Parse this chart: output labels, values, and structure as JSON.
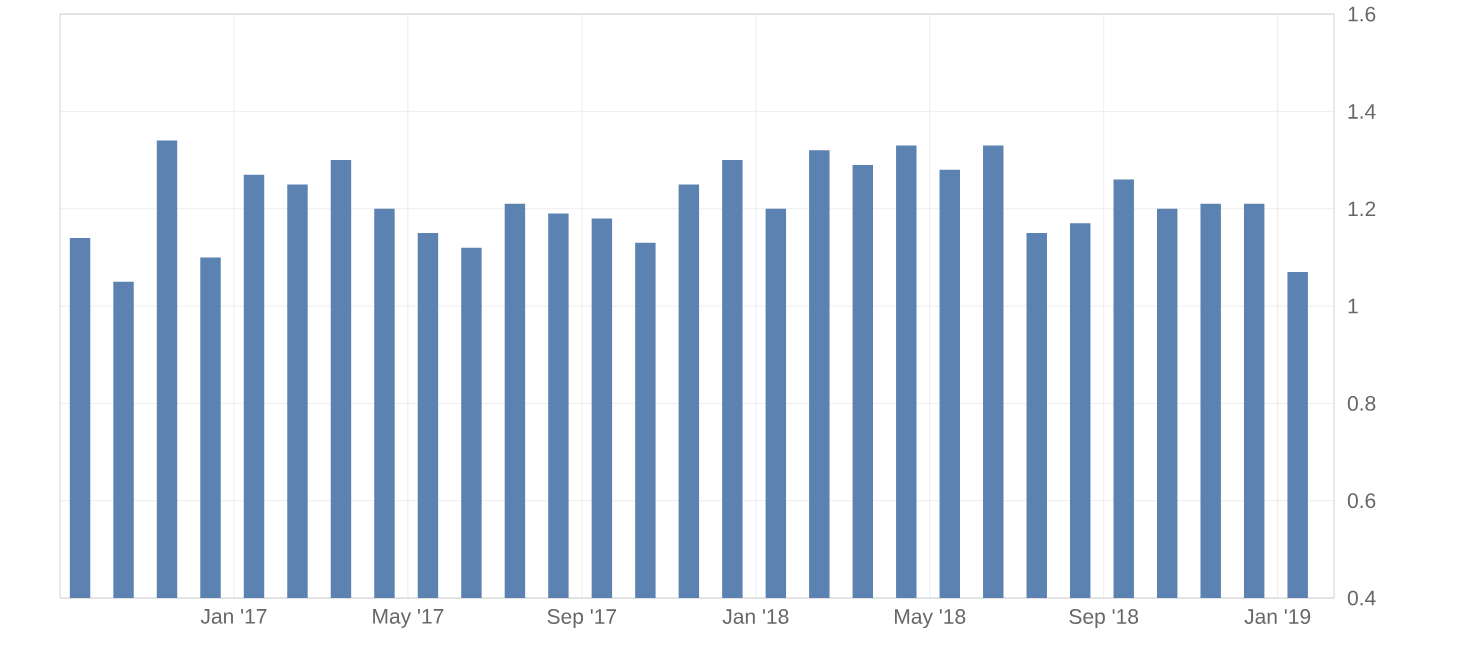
{
  "chart_data": {
    "type": "bar",
    "color": "#5b82b0",
    "x": [
      "2016-09-15",
      "2016-10-15",
      "2016-11-15",
      "2016-12-15",
      "2017-01-15",
      "2017-02-15",
      "2017-03-15",
      "2017-04-15",
      "2017-05-15",
      "2017-06-15",
      "2017-07-15",
      "2017-08-15",
      "2017-09-15",
      "2017-10-15",
      "2017-11-15",
      "2017-12-15",
      "2018-01-15",
      "2018-02-15",
      "2018-03-15",
      "2018-04-15",
      "2018-05-15",
      "2018-06-15",
      "2018-07-15",
      "2018-08-15",
      "2018-09-15",
      "2018-10-15",
      "2018-11-15",
      "2018-12-15",
      "2019-01-15"
    ],
    "values": [
      1.14,
      1.05,
      1.34,
      1.1,
      1.27,
      1.25,
      1.3,
      1.2,
      1.15,
      1.12,
      1.21,
      1.19,
      1.18,
      1.13,
      1.25,
      1.3,
      1.2,
      1.32,
      1.29,
      1.33,
      1.28,
      1.33,
      1.15,
      1.17,
      1.26,
      1.2,
      1.21,
      1.21,
      1.07
    ],
    "xlim": [
      "2016-09-01",
      "2019-02-10"
    ],
    "xticks": [
      {
        "value": "2017-01",
        "label": "Jan '17"
      },
      {
        "value": "2017-05",
        "label": "May '17"
      },
      {
        "value": "2017-09",
        "label": "Sep '17"
      },
      {
        "value": "2018-01",
        "label": "Jan '18"
      },
      {
        "value": "2018-05",
        "label": "May '18"
      },
      {
        "value": "2018-09",
        "label": "Sep '18"
      },
      {
        "value": "2019-01",
        "label": "Jan '19"
      }
    ],
    "ylim": [
      0.4,
      1.6
    ],
    "yticks": [
      0.4,
      0.6,
      0.8,
      1,
      1.2,
      1.4,
      1.6
    ],
    "grid": true
  }
}
